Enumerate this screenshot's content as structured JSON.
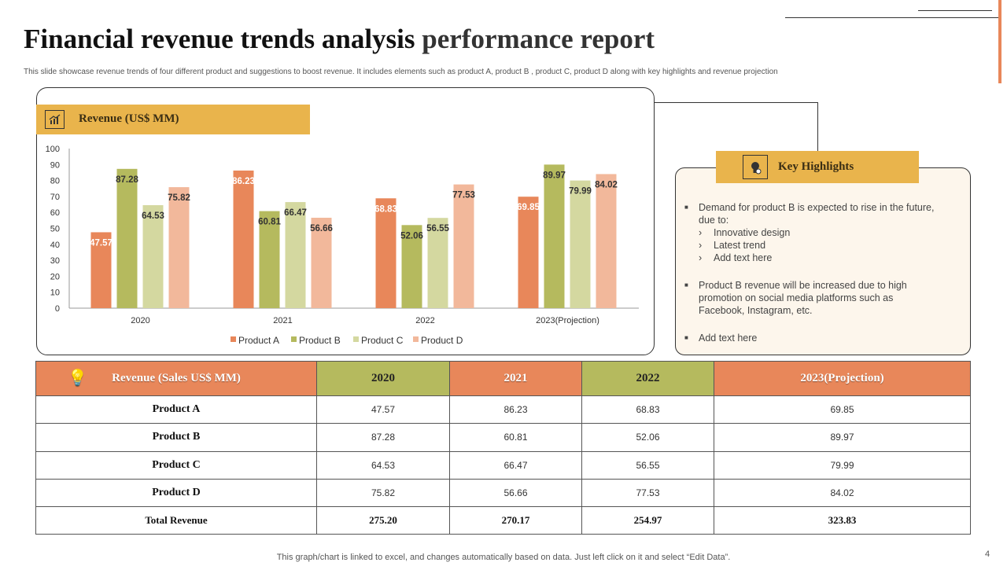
{
  "title_bold": "Financial revenue trends analysis",
  "title_rest": "performance report",
  "subtitle": "This slide showcase revenue trends of four different product and suggestions to boost revenue. It includes elements such as product A, product B , product C, product D along with key highlights and revenue projection",
  "chart_header": "Revenue (US$ MM)",
  "chart_icon": "chart-growth-icon",
  "colors": {
    "accent_gold": "#E9B44C",
    "product_a": "#E8875A",
    "product_b": "#B5BA5E",
    "product_c": "#D4D8A0",
    "product_d": "#F2B89B"
  },
  "chart_data": {
    "type": "bar",
    "categories": [
      "2020",
      "2021",
      "2022",
      "2023(Projection)"
    ],
    "series": [
      {
        "name": "Product A",
        "values": [
          47.57,
          86.23,
          68.83,
          69.85
        ]
      },
      {
        "name": "Product B",
        "values": [
          87.28,
          60.81,
          52.06,
          89.97
        ]
      },
      {
        "name": "Product C",
        "values": [
          64.53,
          66.47,
          56.55,
          79.99
        ]
      },
      {
        "name": "Product D",
        "values": [
          75.82,
          56.66,
          77.53,
          84.02
        ]
      }
    ],
    "ylim": [
      0,
      100
    ],
    "yticks": [
      "0",
      "10",
      "20",
      "30",
      "40",
      "50",
      "60",
      "70",
      "80",
      "90",
      "100"
    ],
    "grid": false,
    "legend": "bottom"
  },
  "highlights": {
    "title": "Key Highlights",
    "icon": "lightbulb-gear-icon",
    "b1": "Demand for product B is expected to rise in the future, due to:",
    "sub": [
      "Innovative  design",
      "Latest trend",
      "Add text here"
    ],
    "b2": "Product B revenue  will be increased due to high promotion on social media platforms such as Facebook, Instagram, etc.",
    "b3": "Add text here"
  },
  "table": {
    "headers": [
      "Revenue (Sales US$ MM)",
      "2020",
      "2021",
      "2022",
      "2023(Projection)"
    ],
    "rows": [
      [
        "Product A",
        "47.57",
        "86.23",
        "68.83",
        "69.85"
      ],
      [
        "Product B",
        "87.28",
        "60.81",
        "52.06",
        "89.97"
      ],
      [
        "Product C",
        "64.53",
        "66.47",
        "56.55",
        "79.99"
      ],
      [
        "Product D",
        "75.82",
        "56.66",
        "77.53",
        "84.02"
      ],
      [
        "Total Revenue",
        "275.20",
        "270.17",
        "254.97",
        "323.83"
      ]
    ]
  },
  "footer": "This graph/chart is linked to excel, and changes automatically based on data. Just left click on it and select “Edit Data”.",
  "page_number": "4"
}
